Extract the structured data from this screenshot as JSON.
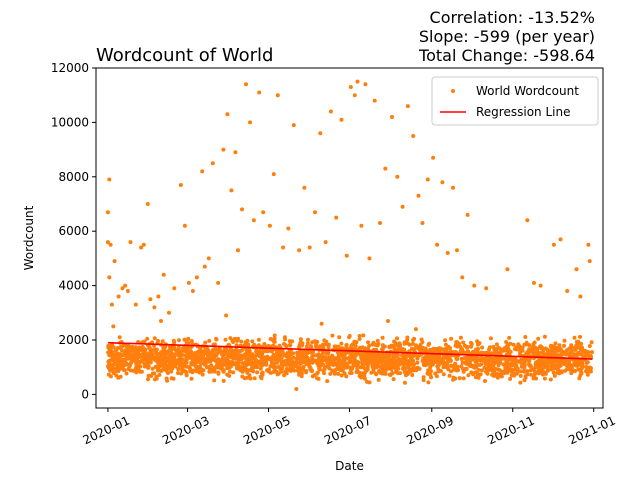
{
  "chart_data": {
    "type": "scatter",
    "title": "Wordcount of World",
    "xlabel": "Date",
    "ylabel": "Wordcount",
    "annotations": [
      "Correlation: -13.52%",
      "Slope: -599 (per year)",
      "Total Change: -598.64"
    ],
    "xlim": [
      "2019-12-23",
      "2021-01-08"
    ],
    "ylim": [
      -500,
      12000
    ],
    "x_ticks": [
      "2020-01",
      "2020-03",
      "2020-05",
      "2020-07",
      "2020-09",
      "2020-11",
      "2021-01"
    ],
    "y_ticks": [
      0,
      2000,
      4000,
      6000,
      8000,
      10000,
      12000
    ],
    "grid": false,
    "legend_position": "top-right",
    "series": [
      {
        "name": "World Wordcount",
        "kind": "scatter",
        "color": "#ff7f0e",
        "dense_band": {
          "x_range": [
            "2020-01-01",
            "2020-12-31"
          ],
          "y_range": [
            300,
            2300
          ]
        },
        "points": [
          {
            "x": "2020-01-02",
            "y": 7900
          },
          {
            "x": "2020-01-01",
            "y": 6700
          },
          {
            "x": "2020-01-01",
            "y": 5600
          },
          {
            "x": "2020-01-03",
            "y": 5500
          },
          {
            "x": "2020-01-02",
            "y": 4300
          },
          {
            "x": "2020-01-04",
            "y": 3300
          },
          {
            "x": "2020-01-06",
            "y": 4900
          },
          {
            "x": "2020-01-09",
            "y": 3600
          },
          {
            "x": "2020-01-12",
            "y": 3900
          },
          {
            "x": "2020-01-14",
            "y": 4000
          },
          {
            "x": "2020-01-16",
            "y": 3800
          },
          {
            "x": "2020-01-18",
            "y": 5600
          },
          {
            "x": "2020-01-22",
            "y": 3300
          },
          {
            "x": "2020-01-26",
            "y": 5400
          },
          {
            "x": "2020-01-28",
            "y": 5500
          },
          {
            "x": "2020-01-31",
            "y": 7000
          },
          {
            "x": "2020-02-02",
            "y": 3500
          },
          {
            "x": "2020-02-05",
            "y": 3200
          },
          {
            "x": "2020-02-08",
            "y": 3600
          },
          {
            "x": "2020-02-12",
            "y": 4400
          },
          {
            "x": "2020-02-16",
            "y": 3000
          },
          {
            "x": "2020-02-20",
            "y": 3900
          },
          {
            "x": "2020-02-25",
            "y": 7700
          },
          {
            "x": "2020-02-28",
            "y": 6200
          },
          {
            "x": "2020-03-02",
            "y": 4100
          },
          {
            "x": "2020-03-05",
            "y": 3800
          },
          {
            "x": "2020-03-08",
            "y": 4300
          },
          {
            "x": "2020-03-12",
            "y": 8200
          },
          {
            "x": "2020-03-14",
            "y": 4700
          },
          {
            "x": "2020-03-17",
            "y": 5000
          },
          {
            "x": "2020-03-20",
            "y": 8500
          },
          {
            "x": "2020-03-24",
            "y": 4100
          },
          {
            "x": "2020-03-28",
            "y": 9000
          },
          {
            "x": "2020-03-31",
            "y": 10300
          },
          {
            "x": "2020-04-03",
            "y": 7500
          },
          {
            "x": "2020-04-06",
            "y": 8900
          },
          {
            "x": "2020-04-08",
            "y": 5300
          },
          {
            "x": "2020-04-11",
            "y": 6800
          },
          {
            "x": "2020-04-14",
            "y": 11400
          },
          {
            "x": "2020-04-17",
            "y": 10000
          },
          {
            "x": "2020-04-20",
            "y": 6400
          },
          {
            "x": "2020-04-24",
            "y": 11100
          },
          {
            "x": "2020-04-27",
            "y": 6700
          },
          {
            "x": "2020-05-02",
            "y": 6200
          },
          {
            "x": "2020-05-05",
            "y": 8100
          },
          {
            "x": "2020-05-08",
            "y": 11000
          },
          {
            "x": "2020-05-12",
            "y": 5400
          },
          {
            "x": "2020-05-16",
            "y": 6100
          },
          {
            "x": "2020-05-20",
            "y": 9900
          },
          {
            "x": "2020-05-24",
            "y": 5300
          },
          {
            "x": "2020-05-28",
            "y": 7600
          },
          {
            "x": "2020-06-01",
            "y": 5400
          },
          {
            "x": "2020-06-05",
            "y": 6700
          },
          {
            "x": "2020-06-09",
            "y": 9600
          },
          {
            "x": "2020-06-13",
            "y": 5600
          },
          {
            "x": "2020-06-17",
            "y": 10400
          },
          {
            "x": "2020-06-21",
            "y": 6500
          },
          {
            "x": "2020-06-25",
            "y": 10100
          },
          {
            "x": "2020-06-29",
            "y": 5100
          },
          {
            "x": "2020-07-02",
            "y": 11300
          },
          {
            "x": "2020-07-05",
            "y": 11000
          },
          {
            "x": "2020-07-07",
            "y": 11500
          },
          {
            "x": "2020-07-10",
            "y": 6200
          },
          {
            "x": "2020-07-13",
            "y": 11400
          },
          {
            "x": "2020-07-16",
            "y": 5000
          },
          {
            "x": "2020-07-20",
            "y": 10800
          },
          {
            "x": "2020-07-24",
            "y": 6300
          },
          {
            "x": "2020-07-28",
            "y": 8300
          },
          {
            "x": "2020-08-02",
            "y": 10200
          },
          {
            "x": "2020-08-06",
            "y": 8000
          },
          {
            "x": "2020-08-10",
            "y": 6900
          },
          {
            "x": "2020-08-14",
            "y": 10600
          },
          {
            "x": "2020-08-18",
            "y": 9500
          },
          {
            "x": "2020-08-22",
            "y": 7300
          },
          {
            "x": "2020-08-25",
            "y": 6300
          },
          {
            "x": "2020-08-29",
            "y": 7900
          },
          {
            "x": "2020-09-02",
            "y": 8700
          },
          {
            "x": "2020-09-05",
            "y": 5500
          },
          {
            "x": "2020-09-09",
            "y": 7800
          },
          {
            "x": "2020-09-13",
            "y": 5200
          },
          {
            "x": "2020-09-17",
            "y": 7600
          },
          {
            "x": "2020-09-20",
            "y": 5300
          },
          {
            "x": "2020-09-24",
            "y": 4300
          },
          {
            "x": "2020-09-28",
            "y": 6600
          },
          {
            "x": "2020-10-03",
            "y": 4000
          },
          {
            "x": "2020-10-12",
            "y": 3900
          },
          {
            "x": "2020-10-28",
            "y": 4600
          },
          {
            "x": "2020-11-12",
            "y": 6400
          },
          {
            "x": "2020-11-17",
            "y": 4100
          },
          {
            "x": "2020-11-22",
            "y": 4000
          },
          {
            "x": "2020-12-02",
            "y": 5500
          },
          {
            "x": "2020-12-07",
            "y": 5700
          },
          {
            "x": "2020-12-12",
            "y": 3800
          },
          {
            "x": "2020-12-19",
            "y": 4600
          },
          {
            "x": "2020-12-22",
            "y": 3600
          },
          {
            "x": "2020-12-28",
            "y": 5500
          },
          {
            "x": "2020-12-29",
            "y": 4900
          },
          {
            "x": "2020-01-05",
            "y": 2500
          },
          {
            "x": "2020-05-22",
            "y": 200
          },
          {
            "x": "2020-06-10",
            "y": 2600
          },
          {
            "x": "2020-07-30",
            "y": 2700
          },
          {
            "x": "2020-08-20",
            "y": 2400
          },
          {
            "x": "2020-03-30",
            "y": 2900
          },
          {
            "x": "2020-02-10",
            "y": 2700
          }
        ]
      },
      {
        "name": "Regression Line",
        "kind": "line",
        "color": "#ff0000",
        "x": [
          "2020-01-01",
          "2020-12-31"
        ],
        "y": [
          1900,
          1300
        ]
      }
    ]
  }
}
